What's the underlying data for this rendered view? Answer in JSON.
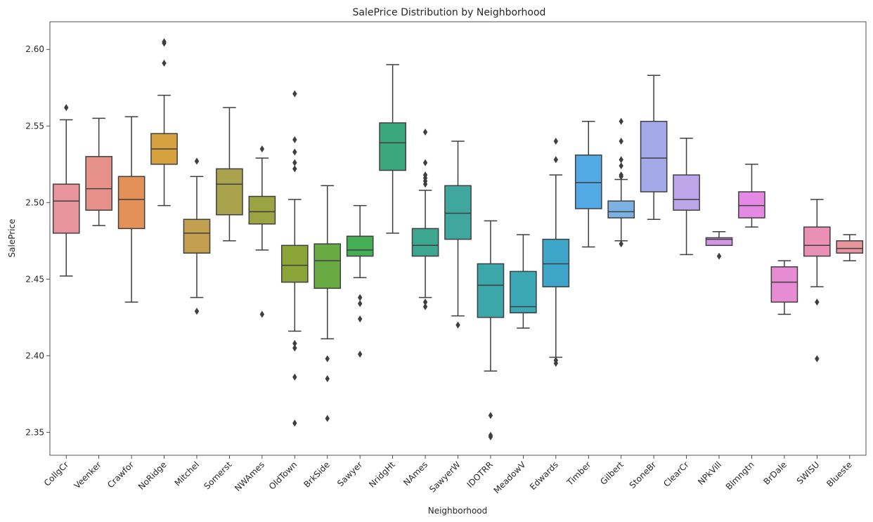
{
  "chart_data": {
    "type": "box",
    "title": "SalePrice Distribution by Neighborhood",
    "xlabel": "Neighborhood",
    "ylabel": "SalePrice",
    "ylim": [
      2.335,
      2.618
    ],
    "yticks": [
      "2.35",
      "2.40",
      "2.45",
      "2.50",
      "2.55",
      "2.60"
    ],
    "grid": false,
    "legend": "none",
    "categories": [
      "CollgCr",
      "Veenker",
      "Crawfor",
      "NoRidge",
      "Mitchel",
      "Somerst",
      "NWAmes",
      "OldTown",
      "BrkSide",
      "Sawyer",
      "NridgHt",
      "NAmes",
      "SawyerW",
      "IDOTRR",
      "MeadowV",
      "Edwards",
      "Timber",
      "Gilbert",
      "StoneBr",
      "ClearCr",
      "NPkVill",
      "Blmngtn",
      "BrDale",
      "SWISU",
      "Blueste"
    ],
    "colors": [
      "#e8949c",
      "#e6928a",
      "#e39158",
      "#d6a23f",
      "#c3a04f",
      "#aaa24d",
      "#9aa442",
      "#8aa437",
      "#69ab42",
      "#43ae53",
      "#3ba77c",
      "#3ca68f",
      "#3fa79d",
      "#3ba7a9",
      "#3ca8b6",
      "#3ea7c9",
      "#53a9e4",
      "#7bb2e3",
      "#a3a9e8",
      "#bca6e9",
      "#d396e6",
      "#e48ae5",
      "#e78cd2",
      "#e990b4",
      "#e8949c"
    ],
    "boxes": [
      {
        "name": "CollgCr",
        "q1": 2.48,
        "median": 2.501,
        "q3": 2.512,
        "whislo": 2.452,
        "whishi": 2.554,
        "fliers": [
          2.562
        ]
      },
      {
        "name": "Veenker",
        "q1": 2.495,
        "median": 2.509,
        "q3": 2.53,
        "whislo": 2.485,
        "whishi": 2.555,
        "fliers": []
      },
      {
        "name": "Crawfor",
        "q1": 2.483,
        "median": 2.502,
        "q3": 2.517,
        "whislo": 2.435,
        "whishi": 2.556,
        "fliers": []
      },
      {
        "name": "NoRidge",
        "q1": 2.525,
        "median": 2.535,
        "q3": 2.545,
        "whislo": 2.498,
        "whishi": 2.57,
        "fliers": [
          2.591,
          2.604,
          2.605
        ]
      },
      {
        "name": "Mitchel",
        "q1": 2.467,
        "median": 2.48,
        "q3": 2.489,
        "whislo": 2.438,
        "whishi": 2.517,
        "fliers": [
          2.527,
          2.429
        ]
      },
      {
        "name": "Somerst",
        "q1": 2.492,
        "median": 2.512,
        "q3": 2.522,
        "whislo": 2.475,
        "whishi": 2.562,
        "fliers": []
      },
      {
        "name": "NWAmes",
        "q1": 2.486,
        "median": 2.494,
        "q3": 2.504,
        "whislo": 2.469,
        "whishi": 2.529,
        "fliers": [
          2.535,
          2.427
        ]
      },
      {
        "name": "OldTown",
        "q1": 2.448,
        "median": 2.459,
        "q3": 2.472,
        "whislo": 2.416,
        "whishi": 2.502,
        "fliers": [
          2.571,
          2.541,
          2.533,
          2.526,
          2.522,
          2.408,
          2.405,
          2.386,
          2.356
        ]
      },
      {
        "name": "BrkSide",
        "q1": 2.444,
        "median": 2.462,
        "q3": 2.473,
        "whislo": 2.411,
        "whishi": 2.511,
        "fliers": [
          2.398,
          2.385,
          2.359
        ]
      },
      {
        "name": "Sawyer",
        "q1": 2.465,
        "median": 2.469,
        "q3": 2.478,
        "whislo": 2.451,
        "whishi": 2.498,
        "fliers": [
          2.438,
          2.434,
          2.424,
          2.401
        ]
      },
      {
        "name": "NridgHt",
        "q1": 2.521,
        "median": 2.539,
        "q3": 2.552,
        "whislo": 2.48,
        "whishi": 2.59,
        "fliers": []
      },
      {
        "name": "NAmes",
        "q1": 2.465,
        "median": 2.472,
        "q3": 2.483,
        "whislo": 2.438,
        "whishi": 2.508,
        "fliers": [
          2.546,
          2.526,
          2.518,
          2.516,
          2.514,
          2.512,
          2.435,
          2.432
        ]
      },
      {
        "name": "SawyerW",
        "q1": 2.476,
        "median": 2.493,
        "q3": 2.511,
        "whislo": 2.426,
        "whishi": 2.54,
        "fliers": [
          2.42
        ]
      },
      {
        "name": "IDOTRR",
        "q1": 2.425,
        "median": 2.446,
        "q3": 2.46,
        "whislo": 2.39,
        "whishi": 2.488,
        "fliers": [
          2.361,
          2.348,
          2.347
        ]
      },
      {
        "name": "MeadowV",
        "q1": 2.428,
        "median": 2.432,
        "q3": 2.455,
        "whislo": 2.418,
        "whishi": 2.479,
        "fliers": []
      },
      {
        "name": "Edwards",
        "q1": 2.445,
        "median": 2.46,
        "q3": 2.476,
        "whislo": 2.399,
        "whishi": 2.518,
        "fliers": [
          2.54,
          2.528,
          2.397,
          2.395
        ]
      },
      {
        "name": "Timber",
        "q1": 2.496,
        "median": 2.513,
        "q3": 2.531,
        "whislo": 2.471,
        "whishi": 2.553,
        "fliers": []
      },
      {
        "name": "Gilbert",
        "q1": 2.49,
        "median": 2.494,
        "q3": 2.501,
        "whislo": 2.475,
        "whishi": 2.515,
        "fliers": [
          2.553,
          2.54,
          2.528,
          2.524,
          2.518,
          2.517,
          2.473
        ]
      },
      {
        "name": "StoneBr",
        "q1": 2.507,
        "median": 2.529,
        "q3": 2.553,
        "whislo": 2.489,
        "whishi": 2.583,
        "fliers": []
      },
      {
        "name": "ClearCr",
        "q1": 2.495,
        "median": 2.502,
        "q3": 2.518,
        "whislo": 2.466,
        "whishi": 2.542,
        "fliers": []
      },
      {
        "name": "NPkVill",
        "q1": 2.472,
        "median": 2.476,
        "q3": 2.477,
        "whislo": 2.472,
        "whishi": 2.481,
        "fliers": [
          2.465
        ]
      },
      {
        "name": "Blmngtn",
        "q1": 2.49,
        "median": 2.498,
        "q3": 2.507,
        "whislo": 2.484,
        "whishi": 2.525,
        "fliers": []
      },
      {
        "name": "BrDale",
        "q1": 2.435,
        "median": 2.448,
        "q3": 2.458,
        "whislo": 2.427,
        "whishi": 2.462,
        "fliers": []
      },
      {
        "name": "SWISU",
        "q1": 2.465,
        "median": 2.472,
        "q3": 2.484,
        "whislo": 2.445,
        "whishi": 2.502,
        "fliers": [
          2.435,
          2.398
        ]
      },
      {
        "name": "Blueste",
        "q1": 2.467,
        "median": 2.47,
        "q3": 2.475,
        "whislo": 2.462,
        "whishi": 2.479,
        "fliers": []
      }
    ]
  }
}
